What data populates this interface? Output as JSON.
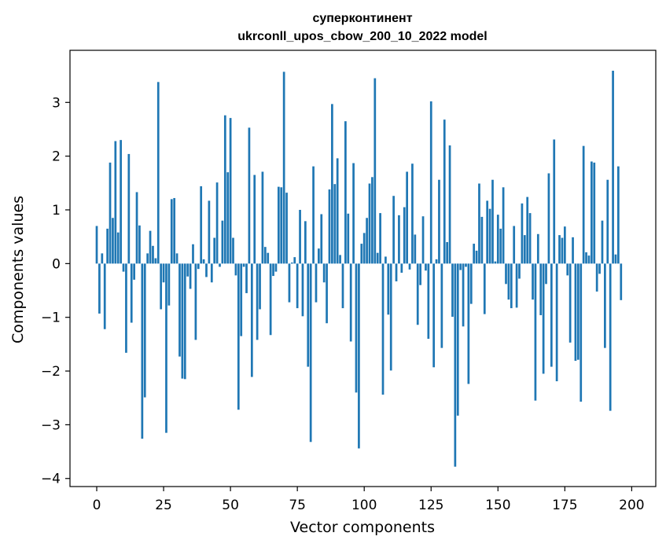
{
  "chart_data": {
    "type": "bar",
    "title": "суперконтинент",
    "subtitle": "ukrconll_upos_cbow_200_10_2022 model",
    "xlabel": "Vector components",
    "ylabel": "Components values",
    "xlim": [
      -10,
      209
    ],
    "ylim": [
      -4.15,
      3.97
    ],
    "xticks": [
      0,
      25,
      50,
      75,
      100,
      125,
      150,
      175,
      200
    ],
    "yticks": [
      -4,
      -3,
      -2,
      -1,
      0,
      1,
      2,
      3
    ],
    "ytick_labels": [
      "−4",
      "−3",
      "−2",
      "−1",
      "0",
      "1",
      "2",
      "3"
    ],
    "grid": false,
    "bar_color": "#1f77b4",
    "values": [
      0.7,
      -0.93,
      0.19,
      -1.22,
      0.65,
      1.88,
      0.85,
      2.28,
      0.58,
      2.3,
      -0.15,
      -1.66,
      2.04,
      -1.1,
      -0.3,
      1.33,
      0.71,
      -3.26,
      -2.49,
      0.19,
      0.61,
      0.33,
      0.1,
      3.38,
      -0.85,
      -0.35,
      -3.15,
      -0.78,
      1.2,
      1.22,
      0.19,
      -1.73,
      -2.14,
      -2.15,
      -0.24,
      -0.47,
      0.36,
      -1.42,
      -0.1,
      1.44,
      0.08,
      -0.25,
      1.17,
      -0.35,
      0.48,
      1.51,
      -0.06,
      0.8,
      2.76,
      1.7,
      2.71,
      0.48,
      -0.22,
      -2.72,
      -1.35,
      -0.06,
      -0.55,
      2.53,
      -2.11,
      1.65,
      -1.42,
      -0.85,
      1.71,
      0.31,
      0.2,
      -1.33,
      -0.23,
      -0.15,
      1.43,
      1.42,
      3.57,
      1.32,
      -0.72,
      0.02,
      0.12,
      -0.83,
      1.0,
      -0.98,
      0.79,
      -1.92,
      -3.32,
      1.81,
      -0.72,
      0.28,
      0.92,
      -0.35,
      -1.11,
      1.38,
      2.97,
      1.48,
      1.96,
      0.16,
      -0.83,
      2.65,
      0.93,
      -1.45,
      1.87,
      -2.4,
      -3.44,
      0.37,
      0.57,
      0.85,
      1.49,
      1.61,
      3.45,
      0.2,
      0.94,
      -2.44,
      0.13,
      -0.95,
      -1.99,
      1.26,
      -0.33,
      0.9,
      -0.17,
      1.05,
      1.71,
      -0.11,
      1.86,
      0.54,
      -1.14,
      -0.4,
      0.88,
      -0.13,
      -1.4,
      3.02,
      -1.93,
      0.08,
      1.56,
      -1.57,
      2.68,
      0.4,
      2.2,
      -0.99,
      -3.78,
      -2.83,
      -0.12,
      -1.17,
      -0.06,
      -2.24,
      -0.75,
      0.37,
      0.24,
      1.49,
      0.87,
      -0.94,
      1.17,
      1.02,
      1.56,
      0.04,
      0.91,
      0.65,
      1.42,
      -0.38,
      -0.67,
      -0.83,
      0.7,
      -0.82,
      -0.28,
      1.12,
      0.53,
      1.24,
      0.94,
      -0.67,
      -2.55,
      0.55,
      -0.96,
      -2.05,
      -0.38,
      1.68,
      -1.92,
      2.31,
      -2.19,
      0.53,
      0.48,
      0.69,
      -0.22,
      -1.47,
      0.49,
      -1.81,
      -1.79,
      -2.57,
      2.19,
      0.21,
      0.15,
      1.9,
      1.88,
      -0.52,
      -0.19,
      0.8,
      -1.57,
      1.56,
      -2.74,
      3.59,
      0.17,
      1.81,
      -0.68
    ]
  }
}
